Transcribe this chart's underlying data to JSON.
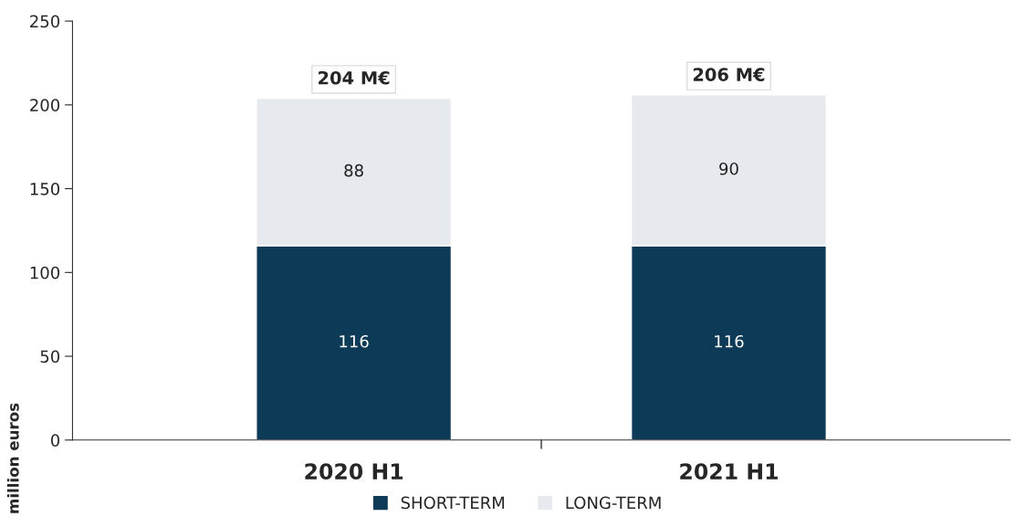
{
  "chart_data": {
    "type": "bar",
    "stacked": true,
    "ylabel": "million euros",
    "categories": [
      "2020 H1",
      "2021 H1"
    ],
    "series": [
      {
        "name": "SHORT-TERM",
        "color": "#0d3a56",
        "values": [
          116,
          116
        ]
      },
      {
        "name": "LONG-TERM",
        "color": "#e6eaee",
        "values": [
          88,
          90
        ]
      }
    ],
    "data_labels": true,
    "totals": [
      "204 M€",
      "206 M€"
    ],
    "ylim": [
      0,
      250
    ],
    "yticks": [
      0,
      50,
      100,
      150,
      200,
      250
    ],
    "grid": false,
    "legend": "bottom"
  }
}
